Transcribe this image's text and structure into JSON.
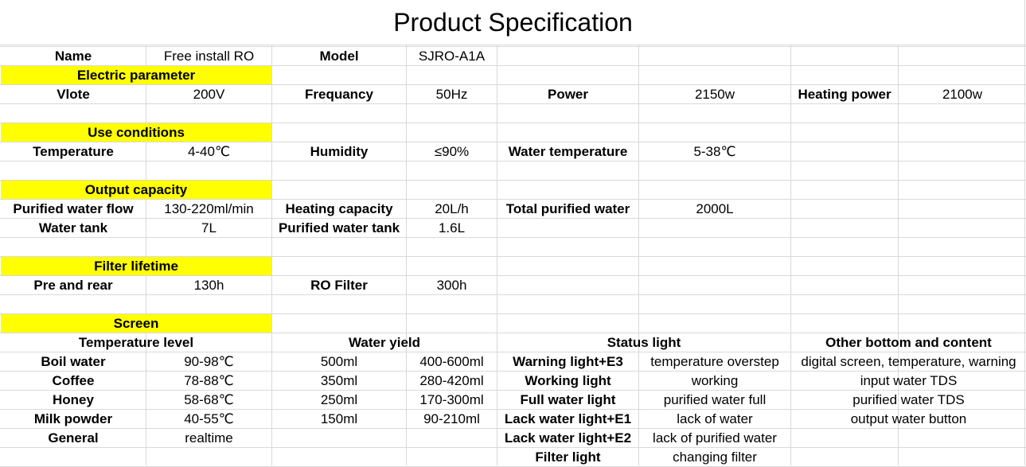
{
  "title": "Product Specification",
  "colors": {
    "section_highlight": "#ffff00",
    "grid_line": "#d9d9d9"
  },
  "rows": [
    {
      "row": 0,
      "cells": [
        {
          "col": 0,
          "text": "Name",
          "bold": true
        },
        {
          "col": 1,
          "text": "Free install RO"
        },
        {
          "col": 2,
          "text": "Model",
          "bold": true
        },
        {
          "col": 3,
          "text": "SJRO-A1A"
        }
      ]
    },
    {
      "row": 1,
      "cells": [
        {
          "col": 0,
          "span": 2,
          "text": "Electric parameter",
          "bold": true,
          "highlight": true
        }
      ]
    },
    {
      "row": 2,
      "cells": [
        {
          "col": 0,
          "text": "Vlote",
          "bold": true
        },
        {
          "col": 1,
          "text": "200V"
        },
        {
          "col": 2,
          "text": "Frequancy",
          "bold": true
        },
        {
          "col": 3,
          "text": "50Hz"
        },
        {
          "col": 4,
          "text": "Power",
          "bold": true
        },
        {
          "col": 5,
          "text": "2150w"
        },
        {
          "col": 6,
          "text": "Heating power",
          "bold": true
        },
        {
          "col": 7,
          "text": "2100w"
        }
      ]
    },
    {
      "row": 4,
      "cells": [
        {
          "col": 0,
          "span": 2,
          "text": "Use conditions",
          "bold": true,
          "highlight": true
        }
      ]
    },
    {
      "row": 5,
      "cells": [
        {
          "col": 0,
          "text": "Temperature",
          "bold": true
        },
        {
          "col": 1,
          "text": "4-40℃"
        },
        {
          "col": 2,
          "text": "Humidity",
          "bold": true
        },
        {
          "col": 3,
          "text": "≤90%"
        },
        {
          "col": 4,
          "text": "Water temperature",
          "bold": true
        },
        {
          "col": 5,
          "text": "5-38℃"
        }
      ]
    },
    {
      "row": 7,
      "cells": [
        {
          "col": 0,
          "span": 2,
          "text": "Output capacity",
          "bold": true,
          "highlight": true
        }
      ]
    },
    {
      "row": 8,
      "cells": [
        {
          "col": 0,
          "text": "Purified water flow",
          "bold": true
        },
        {
          "col": 1,
          "text": "130-220ml/min"
        },
        {
          "col": 2,
          "text": "Heating capacity",
          "bold": true
        },
        {
          "col": 3,
          "text": "20L/h"
        },
        {
          "col": 4,
          "text": "Total purified water",
          "bold": true
        },
        {
          "col": 5,
          "text": "2000L"
        }
      ]
    },
    {
      "row": 9,
      "cells": [
        {
          "col": 0,
          "text": "Water tank",
          "bold": true
        },
        {
          "col": 1,
          "text": "7L"
        },
        {
          "col": 2,
          "text": "Purified water tank",
          "bold": true
        },
        {
          "col": 3,
          "text": "1.6L"
        }
      ]
    },
    {
      "row": 11,
      "cells": [
        {
          "col": 0,
          "span": 2,
          "text": "Filter lifetime",
          "bold": true,
          "highlight": true
        }
      ]
    },
    {
      "row": 12,
      "cells": [
        {
          "col": 0,
          "text": "Pre and rear",
          "bold": true
        },
        {
          "col": 1,
          "text": "130h"
        },
        {
          "col": 2,
          "text": "RO Filter",
          "bold": true
        },
        {
          "col": 3,
          "text": "300h"
        }
      ]
    },
    {
      "row": 14,
      "cells": [
        {
          "col": 0,
          "span": 2,
          "text": "Screen",
          "bold": true,
          "highlight": true
        }
      ]
    },
    {
      "row": 15,
      "cells": [
        {
          "col": 0,
          "span": 2,
          "text": "Temperature level",
          "bold": true
        },
        {
          "col": 2,
          "span": 2,
          "text": "Water yield",
          "bold": true
        },
        {
          "col": 4,
          "span": 2,
          "text": "Status light",
          "bold": true
        },
        {
          "col": 6,
          "span": 2,
          "text": "Other bottom and content",
          "bold": true
        }
      ]
    },
    {
      "row": 16,
      "cells": [
        {
          "col": 0,
          "text": "Boil water",
          "bold": true
        },
        {
          "col": 1,
          "text": "90-98℃"
        },
        {
          "col": 2,
          "text": "500ml"
        },
        {
          "col": 3,
          "text": "400-600ml"
        },
        {
          "col": 4,
          "text": "Warning light+E3",
          "bold": true
        },
        {
          "col": 5,
          "text": "temperature overstep"
        },
        {
          "col": 6,
          "span": 2,
          "text": "digital screen, temperature, warning"
        }
      ]
    },
    {
      "row": 17,
      "cells": [
        {
          "col": 0,
          "text": "Coffee",
          "bold": true
        },
        {
          "col": 1,
          "text": "78-88℃"
        },
        {
          "col": 2,
          "text": "350ml"
        },
        {
          "col": 3,
          "text": "280-420ml"
        },
        {
          "col": 4,
          "text": "Working light",
          "bold": true
        },
        {
          "col": 5,
          "text": "working"
        },
        {
          "col": 6,
          "span": 2,
          "text": "input water TDS"
        }
      ]
    },
    {
      "row": 18,
      "cells": [
        {
          "col": 0,
          "text": "Honey",
          "bold": true
        },
        {
          "col": 1,
          "text": "58-68℃"
        },
        {
          "col": 2,
          "text": "250ml"
        },
        {
          "col": 3,
          "text": "170-300ml"
        },
        {
          "col": 4,
          "text": "Full water light",
          "bold": true
        },
        {
          "col": 5,
          "text": "purified water full"
        },
        {
          "col": 6,
          "span": 2,
          "text": "purified water TDS"
        }
      ]
    },
    {
      "row": 19,
      "cells": [
        {
          "col": 0,
          "text": "Milk powder",
          "bold": true
        },
        {
          "col": 1,
          "text": "40-55℃"
        },
        {
          "col": 2,
          "text": "150ml"
        },
        {
          "col": 3,
          "text": "90-210ml"
        },
        {
          "col": 4,
          "text": "Lack water light+E1",
          "bold": true
        },
        {
          "col": 5,
          "text": "lack of water"
        },
        {
          "col": 6,
          "span": 2,
          "text": "output water button"
        }
      ]
    },
    {
      "row": 20,
      "cells": [
        {
          "col": 0,
          "text": "General",
          "bold": true
        },
        {
          "col": 1,
          "text": "realtime"
        },
        {
          "col": 4,
          "text": "Lack water light+E2",
          "bold": true
        },
        {
          "col": 5,
          "text": "lack of purified water"
        }
      ]
    },
    {
      "row": 21,
      "cells": [
        {
          "col": 4,
          "text": "Filter light",
          "bold": true
        },
        {
          "col": 5,
          "text": "changing filter"
        }
      ]
    }
  ]
}
